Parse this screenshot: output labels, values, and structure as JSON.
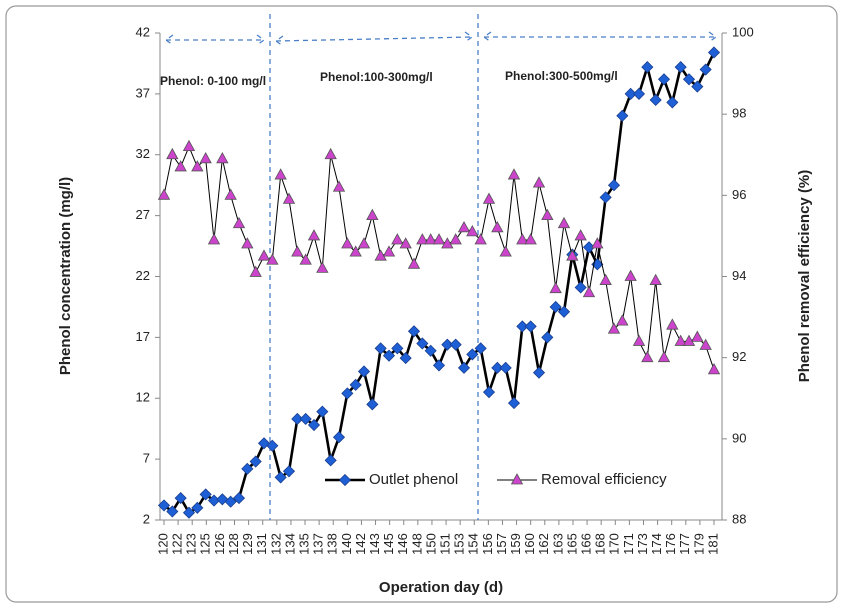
{
  "chart_data": {
    "type": "line",
    "x_label": "Operation day (d)",
    "y_label": "Phenol concentration (mg/l)",
    "y2_label": "Phenol removal efficiency (%)",
    "annotations": [
      "Phenol: 0-100 mg/l",
      "Phenol:100-300mg/l",
      "Phenol:300-500mg/l"
    ],
    "tick_labels": [
      120,
      122,
      123,
      125,
      126,
      128,
      129,
      131,
      132,
      134,
      135,
      137,
      138,
      140,
      142,
      143,
      145,
      146,
      148,
      150,
      151,
      153,
      154,
      156,
      157,
      159,
      160,
      162,
      163,
      165,
      166,
      168,
      170,
      171,
      173,
      174,
      176,
      177,
      179,
      181
    ],
    "ylim": [
      2,
      42
    ],
    "yticks": [
      2,
      7,
      12,
      17,
      22,
      27,
      32,
      37,
      42
    ],
    "y2lim": [
      88,
      100
    ],
    "y2ticks": [
      88,
      90,
      92,
      94,
      96,
      98,
      100
    ],
    "series": [
      {
        "name": "Outlet phenol",
        "color": "#1f5fd6",
        "marker": "diamond",
        "axis": "y",
        "values": [
          3.2,
          2.7,
          3.8,
          2.6,
          3.0,
          4.1,
          3.6,
          3.7,
          3.5,
          3.8,
          6.2,
          6.8,
          8.3,
          8.1,
          5.5,
          6.0,
          10.3,
          10.3,
          9.8,
          10.9,
          6.9,
          8.8,
          12.4,
          13.1,
          14.2,
          11.5,
          16.1,
          15.5,
          16.1,
          15.3,
          17.5,
          16.5,
          15.9,
          14.7,
          16.4,
          16.4,
          14.5,
          15.6,
          16.1,
          12.5,
          14.5,
          14.5,
          11.6,
          17.9,
          17.9,
          14.1,
          17.0,
          19.5,
          19.1,
          23.8,
          21.1,
          24.4,
          23.0,
          28.5,
          29.5,
          35.2,
          37.0,
          37.0,
          39.2,
          36.5,
          38.2,
          36.3,
          39.2,
          38.2,
          37.6,
          39.0,
          40.4
        ]
      },
      {
        "name": "Removal efficiency",
        "color": "#cc44cc",
        "marker": "triangle",
        "axis": "y2",
        "values": [
          96.0,
          97.0,
          96.7,
          97.2,
          96.7,
          96.9,
          94.9,
          96.9,
          96.0,
          95.3,
          94.8,
          94.1,
          94.5,
          94.4,
          96.5,
          95.9,
          94.6,
          94.4,
          95.0,
          94.2,
          97.0,
          96.2,
          94.8,
          94.6,
          94.8,
          95.5,
          94.5,
          94.6,
          94.9,
          94.8,
          94.3,
          94.9,
          94.9,
          94.9,
          94.8,
          94.9,
          95.2,
          95.1,
          94.9,
          95.9,
          95.2,
          94.6,
          96.5,
          94.9,
          94.9,
          96.3,
          95.5,
          93.7,
          95.3,
          94.5,
          95.0,
          93.6,
          94.8,
          93.9,
          92.7,
          92.9,
          94.0,
          92.4,
          92.0,
          93.9,
          92.0,
          92.8,
          92.4,
          92.4,
          92.5,
          92.3,
          91.7
        ]
      }
    ]
  }
}
